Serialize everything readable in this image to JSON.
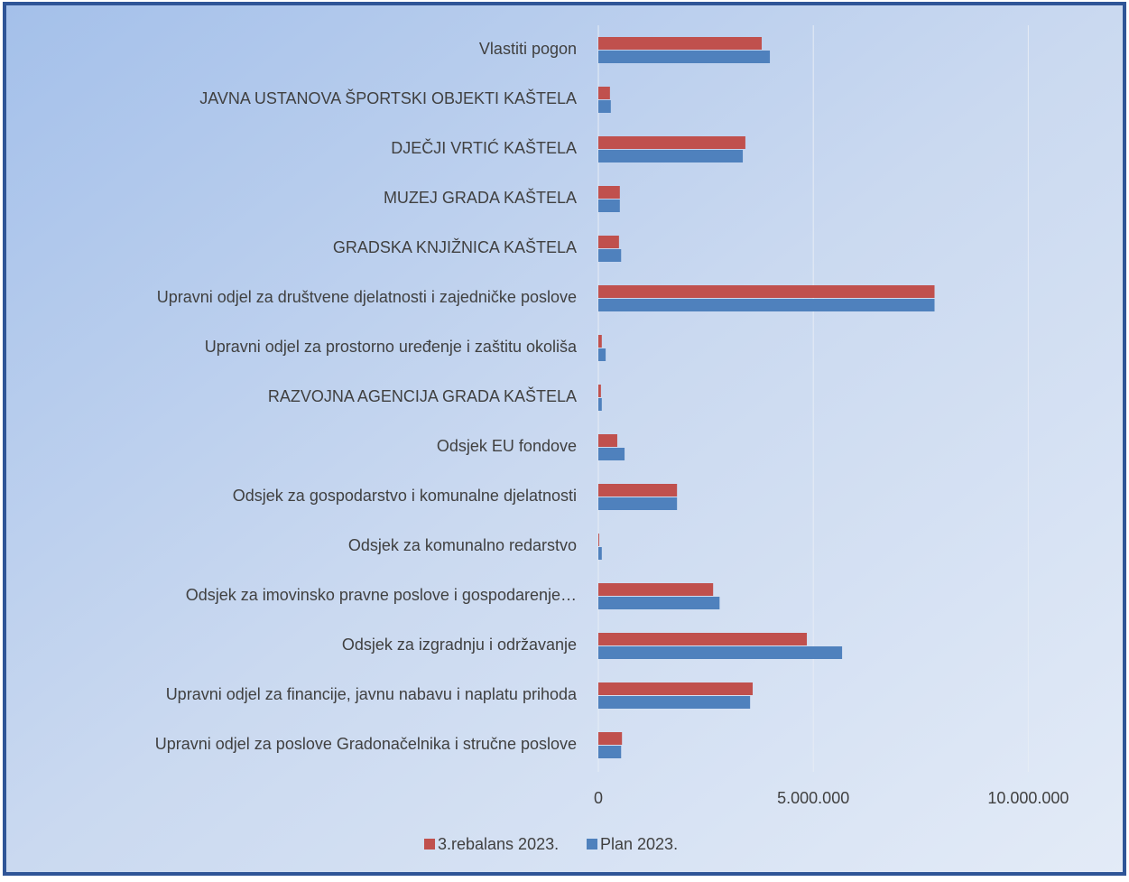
{
  "chart_data": {
    "type": "hbar",
    "categories": [
      "Vlastiti pogon",
      "JAVNA USTANOVA ŠPORTSKI OBJEKTI KAŠTELA",
      "DJEČJI VRTIĆ KAŠTELA",
      "MUZEJ GRADA KAŠTELA",
      "GRADSKA KNJIŽNICA KAŠTELA",
      "Upravni odjel za društvene djelatnosti i zajedničke poslove",
      "Upravni odjel za prostorno uređenje i zaštitu okoliša",
      "RAZVOJNA AGENCIJA GRADA KAŠTELA",
      "Odsjek  EU fondove",
      "Odsjek za gospodarstvo i komunalne djelatnosti",
      "Odsjek za komunalno redarstvo",
      "Odsjek za imovinsko pravne poslove i gospodarenje…",
      "Odsjek za izgradnju i održavanje",
      "Upravni odjel za financije, javnu nabavu i naplatu prihoda",
      "Upravni odjel za poslove Gradonačelnika i stručne poslove"
    ],
    "series": [
      {
        "name": "3.rebalans 2023.",
        "color": "#c0504d",
        "values": [
          3800000,
          270000,
          3420000,
          500000,
          480000,
          7820000,
          80000,
          60000,
          440000,
          1830000,
          20000,
          2670000,
          4850000,
          3590000,
          550000
        ]
      },
      {
        "name": "Plan 2023.",
        "color": "#4f81bd",
        "values": [
          3990000,
          290000,
          3360000,
          500000,
          530000,
          7820000,
          170000,
          80000,
          610000,
          1830000,
          80000,
          2820000,
          5670000,
          3530000,
          530000
        ]
      }
    ],
    "xlim": [
      0,
      11000000
    ],
    "xticks": [
      0,
      {
        "value": 5000000,
        "label": "5.000.000"
      },
      {
        "value": 10000000,
        "label": "10.000.000"
      }
    ],
    "grid": true,
    "legend": "bottom"
  }
}
